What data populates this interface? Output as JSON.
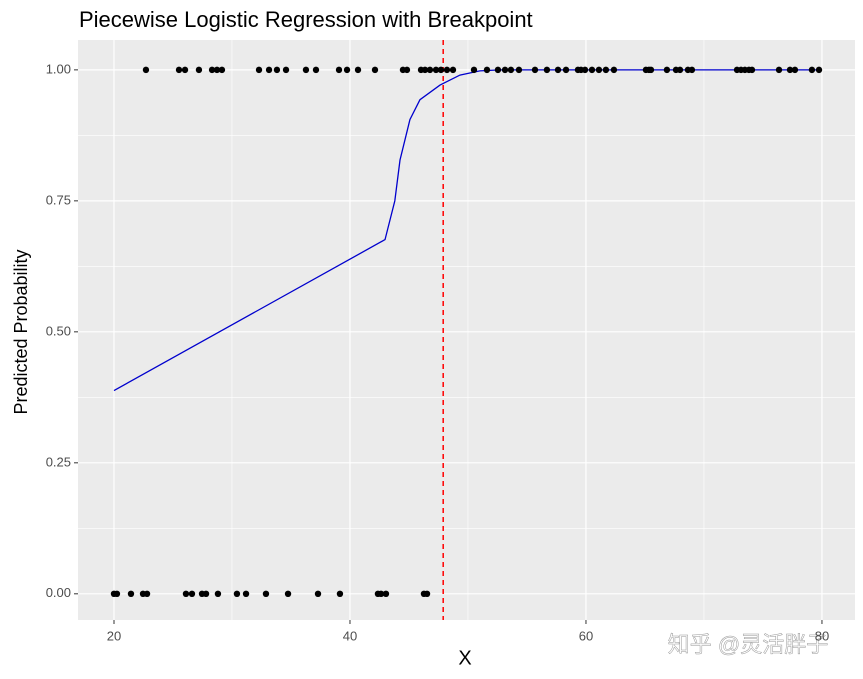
{
  "chart_data": {
    "type": "scatter",
    "title": "Piecewise Logistic Regression with Breakpoint",
    "xlabel": "X",
    "ylabel": "Predicted Probability",
    "watermark": "知乎 @灵活胖子",
    "xlim": [
      16.95,
      82.8
    ],
    "xticks": [
      20,
      40,
      60,
      80
    ],
    "ylim": [
      -0.05,
      1.057
    ],
    "yticks": [
      {
        "value": 0,
        "label": "0.00"
      },
      {
        "value": 0.25,
        "label": "0.25"
      },
      {
        "value": 0.5,
        "label": "0.50"
      },
      {
        "value": 0.75,
        "label": "0.75"
      },
      {
        "value": 1,
        "label": "1.00"
      }
    ],
    "grid": true,
    "points": {
      "color": "#000000",
      "x": [
        22.71,
        25.51,
        26.02,
        27.2,
        28.31,
        28.73,
        29.15,
        32.29,
        33.14,
        33.81,
        34.58,
        36.27,
        37.12,
        39.07,
        39.75,
        40.68,
        42.12,
        44.49,
        44.83,
        46.02,
        46.36,
        46.78,
        47.29,
        47.71,
        48.22,
        48.73,
        50.51,
        51.61,
        52.54,
        53.14,
        53.64,
        54.32,
        55.68,
        56.69,
        57.63,
        58.31,
        59.32,
        59.58,
        59.92,
        60.51,
        61.1,
        61.69,
        62.37,
        65.08,
        65.34,
        65.51,
        66.86,
        67.63,
        67.97,
        68.64,
        68.98,
        72.8,
        73.14,
        73.47,
        73.81,
        74.07,
        76.36,
        77.29,
        77.71,
        79.15,
        79.75,
        20,
        20.25,
        21.44,
        22.46,
        22.8,
        26.1,
        26.61,
        27.46,
        27.8,
        28.81,
        30.42,
        31.19,
        32.88,
        34.75,
        37.29,
        39.15,
        42.37,
        42.63,
        43.05,
        46.27,
        46.53
      ],
      "values": [
        1,
        1,
        1,
        1,
        1,
        1,
        1,
        1,
        1,
        1,
        1,
        1,
        1,
        1,
        1,
        1,
        1,
        1,
        1,
        1,
        1,
        1,
        1,
        1,
        1,
        1,
        1,
        1,
        1,
        1,
        1,
        1,
        1,
        1,
        1,
        1,
        1,
        1,
        1,
        1,
        1,
        1,
        1,
        1,
        1,
        1,
        1,
        1,
        1,
        1,
        1,
        1,
        1,
        1,
        1,
        1,
        1,
        1,
        1,
        1,
        1,
        0,
        0,
        0,
        0,
        0,
        0,
        0,
        0,
        0,
        0,
        0,
        0,
        0,
        0,
        0,
        0,
        0,
        0,
        0,
        0,
        0
      ]
    },
    "curve": {
      "color": "#0000cd",
      "x": [
        20,
        42.97,
        43.8,
        44.24,
        45.08,
        45.93,
        47.63,
        49.32,
        51.0,
        52.7,
        80
      ],
      "values": [
        0.388,
        0.676,
        0.75,
        0.828,
        0.905,
        0.943,
        0.971,
        0.99,
        0.998,
        1.0,
        1.0
      ]
    },
    "breakpoint": {
      "x": 47.9,
      "color": "#ff0000"
    }
  }
}
